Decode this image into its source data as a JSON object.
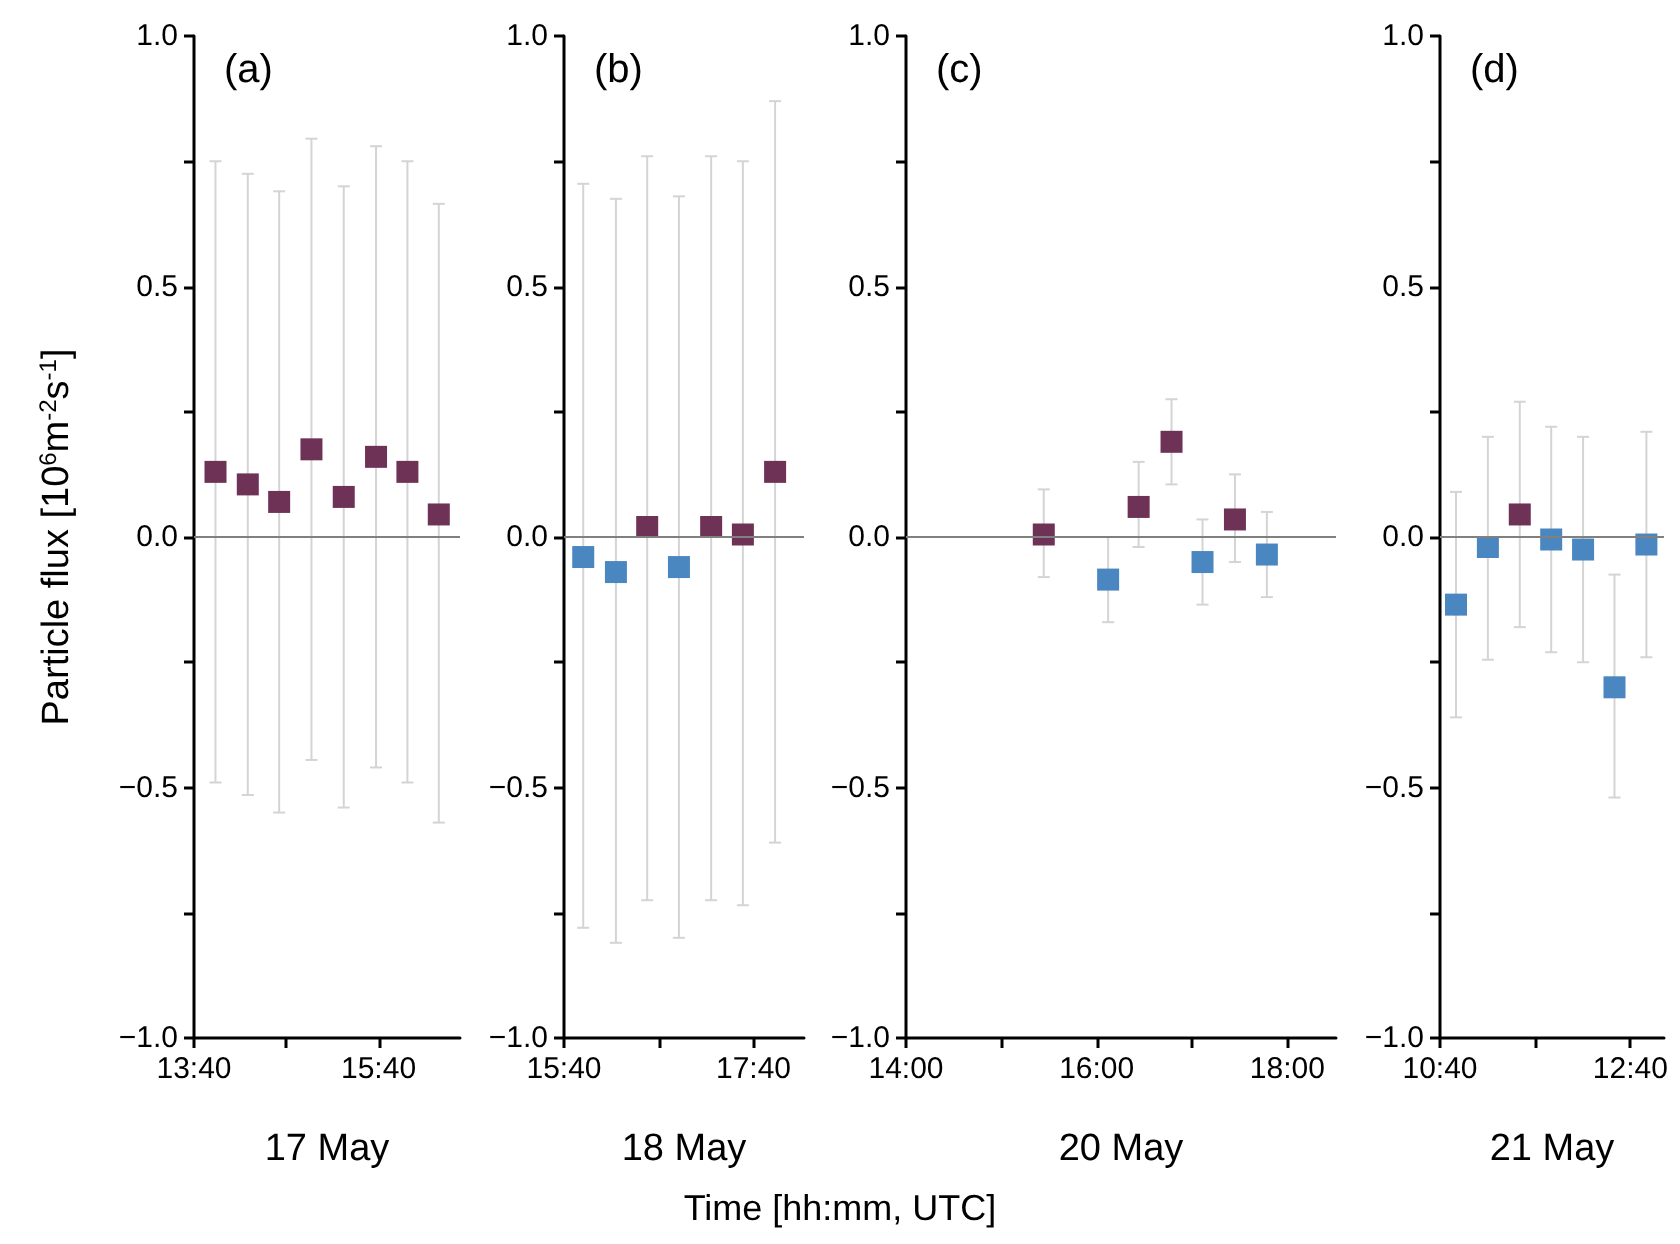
{
  "chart_data": [
    {
      "type": "scatter",
      "title": "(a)",
      "xlabel": "17 May",
      "ylabel": "Particle flux [10$^{6}$m$^{-2}$s$^{-1}$]",
      "marker": "square",
      "annotations": [
        "Time [hh:mm, UTC]"
      ],
      "xlim": [
        13.667,
        16.55
      ],
      "xticks": [
        {
          "value": 13.667,
          "label": "13:40"
        },
        {
          "value": 14.667,
          "label": null
        },
        {
          "value": 15.667,
          "label": "15:40"
        }
      ],
      "ylim": [
        -1,
        1
      ],
      "yticks": [
        {
          "value": -1,
          "label": "−1.0"
        },
        {
          "value": -0.75,
          "label": null
        },
        {
          "value": -0.5,
          "label": "−0.5"
        },
        {
          "value": -0.25,
          "label": null
        },
        {
          "value": 0,
          "label": "0.0"
        },
        {
          "value": 0.25,
          "label": null
        },
        {
          "value": 0.5,
          "label": "0.5"
        },
        {
          "value": 0.75,
          "label": null
        },
        {
          "value": 1,
          "label": "1.0"
        }
      ],
      "ref_lines": [
        {
          "axis": "y",
          "value": 0,
          "color": "#808080"
        }
      ],
      "series": [
        {
          "color": "#6e3257",
          "x": [
            13.9,
            14.25,
            14.59,
            14.94,
            15.29,
            15.64,
            15.98,
            16.32
          ],
          "values": [
            0.13,
            0.105,
            0.07,
            0.175,
            0.08,
            0.16,
            0.13,
            0.045
          ],
          "errors": [
            [
              -0.49,
              0.75
            ],
            [
              -0.515,
              0.725
            ],
            [
              -0.55,
              0.69
            ],
            [
              -0.445,
              0.795
            ],
            [
              -0.54,
              0.7
            ],
            [
              -0.46,
              0.78
            ],
            [
              -0.49,
              0.75
            ],
            [
              -0.57,
              0.665
            ]
          ]
        }
      ]
    },
    {
      "type": "scatter",
      "title": "(b)",
      "xlabel": "18 May",
      "marker": "square",
      "xlim": [
        15.667,
        18.2
      ],
      "xticks": [
        {
          "value": 15.667,
          "label": "15:40"
        },
        {
          "value": 16.667,
          "label": null
        },
        {
          "value": 17.667,
          "label": "17:40"
        }
      ],
      "ylim": [
        -1,
        1
      ],
      "yticks": [
        {
          "value": -1,
          "label": "−1.0"
        },
        {
          "value": -0.75,
          "label": null
        },
        {
          "value": -0.5,
          "label": "−0.5"
        },
        {
          "value": -0.25,
          "label": null
        },
        {
          "value": 0,
          "label": "0.0"
        },
        {
          "value": 0.25,
          "label": null
        },
        {
          "value": 0.5,
          "label": "0.5"
        },
        {
          "value": 0.75,
          "label": null
        },
        {
          "value": 1,
          "label": "1.0"
        }
      ],
      "ref_lines": [
        {
          "axis": "y",
          "value": 0,
          "color": "#808080"
        }
      ],
      "series": [
        {
          "color": "#4a86c0",
          "x": [
            15.87,
            16.215,
            16.88
          ],
          "values": [
            -0.04,
            -0.07,
            -0.06
          ],
          "errors": [
            [
              -0.78,
              0.705
            ],
            [
              -0.81,
              0.675
            ],
            [
              -0.8,
              0.68
            ]
          ]
        },
        {
          "color": "#6e3257",
          "x": [
            16.545,
            17.22,
            17.555,
            17.895
          ],
          "values": [
            0.02,
            0.02,
            0.005,
            0.13
          ],
          "errors": [
            [
              -0.725,
              0.76
            ],
            [
              -0.725,
              0.76
            ],
            [
              -0.735,
              0.75
            ],
            [
              -0.61,
              0.87
            ]
          ]
        }
      ]
    },
    {
      "type": "scatter",
      "title": "(c)",
      "xlabel": "20 May",
      "marker": "square",
      "xlim": [
        14,
        18.51
      ],
      "xticks": [
        {
          "value": 14,
          "label": "14:00"
        },
        {
          "value": 15,
          "label": null
        },
        {
          "value": 16,
          "label": "16:00"
        },
        {
          "value": 17,
          "label": null
        },
        {
          "value": 18,
          "label": "18:00"
        }
      ],
      "ylim": [
        -1,
        1
      ],
      "yticks": [
        {
          "value": -1,
          "label": "−1.0"
        },
        {
          "value": -0.75,
          "label": null
        },
        {
          "value": -0.5,
          "label": "−0.5"
        },
        {
          "value": -0.25,
          "label": null
        },
        {
          "value": 0,
          "label": "0.0"
        },
        {
          "value": 0.25,
          "label": null
        },
        {
          "value": 0.5,
          "label": "0.5"
        },
        {
          "value": 0.75,
          "label": null
        },
        {
          "value": 1,
          "label": "1.0"
        }
      ],
      "ref_lines": [
        {
          "axis": "y",
          "value": 0,
          "color": "#808080"
        }
      ],
      "series": [
        {
          "color": "#6e3257",
          "x": [
            15.445,
            16.44,
            16.785,
            17.45
          ],
          "values": [
            0.005,
            0.06,
            0.19,
            0.035
          ],
          "errors": [
            [
              -0.08,
              0.095
            ],
            [
              -0.02,
              0.15
            ],
            [
              0.105,
              0.275
            ],
            [
              -0.05,
              0.125
            ]
          ]
        },
        {
          "color": "#4a86c0",
          "x": [
            16.12,
            17.11,
            17.785
          ],
          "values": [
            -0.085,
            -0.05,
            -0.035
          ],
          "errors": [
            [
              -0.17,
              0.0
            ],
            [
              -0.135,
              0.035
            ],
            [
              -0.12,
              0.05
            ]
          ]
        }
      ]
    },
    {
      "type": "scatter",
      "title": "(d)",
      "xlabel": "21 May",
      "marker": "square",
      "xlim": [
        10.667,
        13.02
      ],
      "xticks": [
        {
          "value": 10.667,
          "label": "10:40"
        },
        {
          "value": 11.667,
          "label": null
        },
        {
          "value": 12.667,
          "label": "12:40"
        }
      ],
      "ylim": [
        -1,
        1
      ],
      "yticks": [
        {
          "value": -1,
          "label": "−1.0"
        },
        {
          "value": -0.75,
          "label": null
        },
        {
          "value": -0.5,
          "label": "−0.5"
        },
        {
          "value": -0.25,
          "label": null
        },
        {
          "value": 0,
          "label": "0.0"
        },
        {
          "value": 0.25,
          "label": null
        },
        {
          "value": 0.5,
          "label": "0.5"
        },
        {
          "value": 0.75,
          "label": null
        },
        {
          "value": 1,
          "label": "1.0"
        }
      ],
      "ref_lines": [
        {
          "axis": "y",
          "value": 0,
          "color": "#808080"
        }
      ],
      "series": [
        {
          "color": "#6e3257",
          "x": [
            11.505
          ],
          "values": [
            0.045
          ],
          "errors": [
            [
              -0.18,
              0.27
            ]
          ]
        },
        {
          "color": "#4a86c0",
          "x": [
            10.835,
            11.17,
            11.835,
            12.17,
            12.5,
            12.835
          ],
          "values": [
            -0.135,
            -0.02,
            -0.005,
            -0.025,
            -0.3,
            -0.015
          ],
          "errors": [
            [
              -0.36,
              0.09
            ],
            [
              -0.245,
              0.2
            ],
            [
              -0.23,
              0.22
            ],
            [
              -0.25,
              0.2
            ],
            [
              -0.52,
              -0.075
            ],
            [
              -0.24,
              0.21
            ]
          ]
        }
      ]
    }
  ]
}
